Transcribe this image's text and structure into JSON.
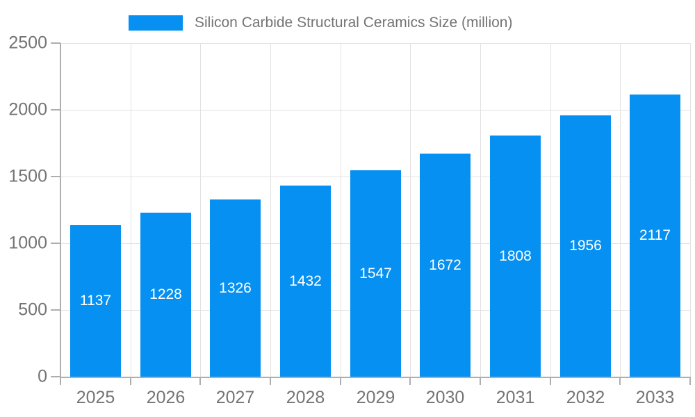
{
  "legend": {
    "label": "Silicon Carbide Structural Ceramics Size (million)"
  },
  "chart_data": {
    "type": "bar",
    "title": "Silicon Carbide Structural Ceramics Size (million)",
    "categories": [
      "2025",
      "2026",
      "2027",
      "2028",
      "2029",
      "2030",
      "2031",
      "2032",
      "2033"
    ],
    "values": [
      1137,
      1228,
      1326,
      1432,
      1547,
      1672,
      1808,
      1956,
      2117
    ],
    "xlabel": "",
    "ylabel": "",
    "ylim": [
      0,
      2500
    ],
    "yticks": [
      0,
      500,
      1000,
      1500,
      2000,
      2500
    ],
    "grid": true,
    "legend_position": "top-center",
    "value_labels": "inside-center",
    "colors": {
      "bar": "#0590f2",
      "value_label": "#ffffff",
      "axis_text": "#747474",
      "grid_line": "#e2e2e2",
      "axis_line": "#aeaeae"
    }
  }
}
